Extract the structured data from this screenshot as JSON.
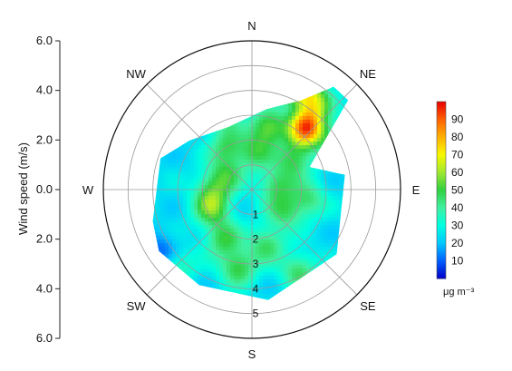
{
  "chart_data": {
    "type": "heatmap",
    "subtype": "polar-contour",
    "ylabel": "Wind speed (m/s)",
    "y_ticks": [
      "6.0",
      "4.0",
      "2.0",
      "0.0",
      "2.0",
      "4.0",
      "6.0"
    ],
    "radial_max": 6.0,
    "directions": [
      "N",
      "NE",
      "E",
      "SE",
      "S",
      "SW",
      "W",
      "NW"
    ],
    "radial_rings": [
      1,
      2,
      3,
      4,
      5
    ],
    "ring_labels": [
      "1",
      "2",
      "3",
      "4",
      "5"
    ],
    "colorbar": {
      "min": 0,
      "max": 100,
      "ticks": [
        "10",
        "20",
        "30",
        "40",
        "50",
        "60",
        "70",
        "80",
        "90"
      ],
      "unit": "μg m⁻³",
      "colors": [
        "#0000c8",
        "#0060ff",
        "#00c8ff",
        "#00ffe0",
        "#40f0a0",
        "#30d040",
        "#a0e830",
        "#f8f800",
        "#ffb000",
        "#ff6000",
        "#e80000"
      ]
    },
    "field": {
      "background_level": 24,
      "hotspots": [
        {
          "direction_deg": 22,
          "speed": 4.7,
          "level": 82
        },
        {
          "direction_deg": 42,
          "speed": 3.3,
          "level": 88
        },
        {
          "direction_deg": 35,
          "speed": 4.3,
          "level": 62
        },
        {
          "direction_deg": 15,
          "speed": 2.6,
          "level": 55
        },
        {
          "direction_deg": 55,
          "speed": 2.1,
          "level": 48
        },
        {
          "direction_deg": 5,
          "speed": 1.5,
          "level": 45
        },
        {
          "direction_deg": 330,
          "speed": 2.0,
          "level": 45
        },
        {
          "direction_deg": 300,
          "speed": 1.2,
          "level": 44
        },
        {
          "direction_deg": 270,
          "speed": 1.6,
          "level": 42
        },
        {
          "direction_deg": 245,
          "speed": 1.8,
          "level": 52
        },
        {
          "direction_deg": 210,
          "speed": 2.3,
          "level": 48
        },
        {
          "direction_deg": 165,
          "speed": 2.3,
          "level": 46
        },
        {
          "direction_deg": 100,
          "speed": 2.3,
          "level": 44
        },
        {
          "direction_deg": 80,
          "speed": 1.0,
          "level": 46
        },
        {
          "direction_deg": 190,
          "speed": 3.2,
          "level": 50
        },
        {
          "direction_deg": 150,
          "speed": 3.8,
          "level": 46
        },
        {
          "direction_deg": 225,
          "speed": 4.3,
          "level": 40
        },
        {
          "direction_deg": 60,
          "speed": 4.0,
          "level": 40
        },
        {
          "direction_deg": 125,
          "speed": 1.6,
          "level": 44
        },
        {
          "direction_deg": 340,
          "speed": 3.2,
          "level": 40
        },
        {
          "direction_deg": 235,
          "speed": 4.4,
          "level": 8
        }
      ]
    },
    "data_region_polygon": [
      {
        "direction_deg": 38.5,
        "speed": 5.3
      },
      {
        "direction_deg": 47.1,
        "speed": 5.3
      },
      {
        "direction_deg": 68.6,
        "speed": 2.5
      },
      {
        "direction_deg": 81.0,
        "speed": 3.8
      },
      {
        "direction_deg": 127.3,
        "speed": 4.3
      },
      {
        "direction_deg": 171.6,
        "speed": 4.5
      },
      {
        "direction_deg": 209.0,
        "speed": 4.4
      },
      {
        "direction_deg": 236.5,
        "speed": 4.5
      },
      {
        "direction_deg": 252.3,
        "speed": 4.2
      },
      {
        "direction_deg": 288.8,
        "speed": 3.9
      },
      {
        "direction_deg": 308.3,
        "speed": 3.2
      },
      {
        "direction_deg": 339.1,
        "speed": 2.7
      },
      {
        "direction_deg": 10.4,
        "speed": 3.3
      },
      {
        "direction_deg": 28.8,
        "speed": 4.1
      }
    ]
  }
}
